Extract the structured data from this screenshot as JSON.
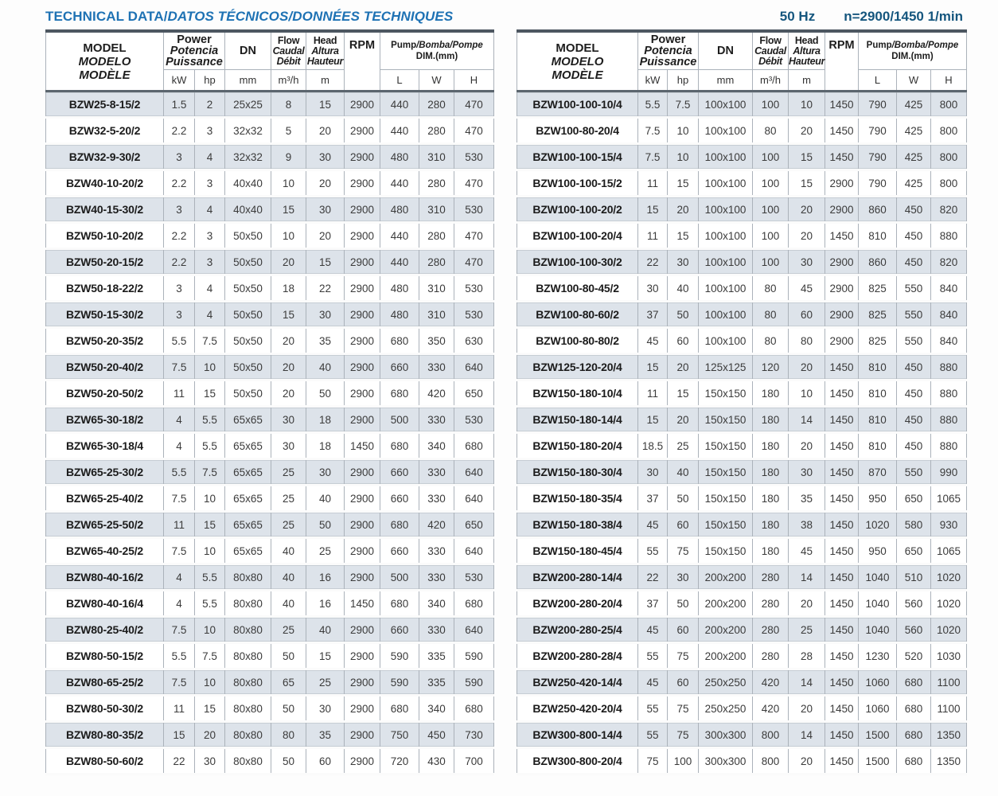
{
  "header": {
    "title_main": "TECHNICAL DATA/",
    "title_translations": "DATOS TÉCNICOS/DONNÉES TECHNIQUES",
    "frequency": "50 Hz",
    "speed": "n=2900/1450 1/min"
  },
  "colors": {
    "title_blue": "#1e72b4",
    "subtitle_blue": "#15567e",
    "row_stripe": "#dde3ea",
    "table_border_dark": "#4d5761"
  },
  "columns": {
    "model": [
      "MODEL",
      "MODELO",
      "MODÈLE"
    ],
    "power": [
      "Power",
      "Potencia",
      "Puissance"
    ],
    "dn": "DN",
    "flow": [
      "Flow",
      "Caudal",
      "Débit"
    ],
    "head": [
      "Head",
      "Altura",
      "Hauteur"
    ],
    "rpm": "RPM",
    "dim_pump": "Pump",
    "dim_rest": "/Bomba/Pompe",
    "dim_line2": "DIM.(mm)",
    "units": {
      "kw": "kW",
      "hp": "hp",
      "mm": "mm",
      "flow": "m³/h",
      "head": "m",
      "l": "L",
      "w": "W",
      "h": "H"
    }
  },
  "tables": {
    "left": {
      "rows": [
        [
          "BZW25-8-15/2",
          "1.5",
          "2",
          "25x25",
          "8",
          "15",
          "2900",
          "440",
          "280",
          "470"
        ],
        [
          "BZW32-5-20/2",
          "2.2",
          "3",
          "32x32",
          "5",
          "20",
          "2900",
          "440",
          "280",
          "470"
        ],
        [
          "BZW32-9-30/2",
          "3",
          "4",
          "32x32",
          "9",
          "30",
          "2900",
          "480",
          "310",
          "530"
        ],
        [
          "BZW40-10-20/2",
          "2.2",
          "3",
          "40x40",
          "10",
          "20",
          "2900",
          "440",
          "280",
          "470"
        ],
        [
          "BZW40-15-30/2",
          "3",
          "4",
          "40x40",
          "15",
          "30",
          "2900",
          "480",
          "310",
          "530"
        ],
        [
          "BZW50-10-20/2",
          "2.2",
          "3",
          "50x50",
          "10",
          "20",
          "2900",
          "440",
          "280",
          "470"
        ],
        [
          "BZW50-20-15/2",
          "2.2",
          "3",
          "50x50",
          "20",
          "15",
          "2900",
          "440",
          "280",
          "470"
        ],
        [
          "BZW50-18-22/2",
          "3",
          "4",
          "50x50",
          "18",
          "22",
          "2900",
          "480",
          "310",
          "530"
        ],
        [
          "BZW50-15-30/2",
          "3",
          "4",
          "50x50",
          "15",
          "30",
          "2900",
          "480",
          "310",
          "530"
        ],
        [
          "BZW50-20-35/2",
          "5.5",
          "7.5",
          "50x50",
          "20",
          "35",
          "2900",
          "680",
          "350",
          "630"
        ],
        [
          "BZW50-20-40/2",
          "7.5",
          "10",
          "50x50",
          "20",
          "40",
          "2900",
          "660",
          "330",
          "640"
        ],
        [
          "BZW50-20-50/2",
          "11",
          "15",
          "50x50",
          "20",
          "50",
          "2900",
          "680",
          "420",
          "650"
        ],
        [
          "BZW65-30-18/2",
          "4",
          "5.5",
          "65x65",
          "30",
          "18",
          "2900",
          "500",
          "330",
          "530"
        ],
        [
          "BZW65-30-18/4",
          "4",
          "5.5",
          "65x65",
          "30",
          "18",
          "1450",
          "680",
          "340",
          "680"
        ],
        [
          "BZW65-25-30/2",
          "5.5",
          "7.5",
          "65x65",
          "25",
          "30",
          "2900",
          "660",
          "330",
          "640"
        ],
        [
          "BZW65-25-40/2",
          "7.5",
          "10",
          "65x65",
          "25",
          "40",
          "2900",
          "660",
          "330",
          "640"
        ],
        [
          "BZW65-25-50/2",
          "11",
          "15",
          "65x65",
          "25",
          "50",
          "2900",
          "680",
          "420",
          "650"
        ],
        [
          "BZW65-40-25/2",
          "7.5",
          "10",
          "65x65",
          "40",
          "25",
          "2900",
          "660",
          "330",
          "640"
        ],
        [
          "BZW80-40-16/2",
          "4",
          "5.5",
          "80x80",
          "40",
          "16",
          "2900",
          "500",
          "330",
          "530"
        ],
        [
          "BZW80-40-16/4",
          "4",
          "5.5",
          "80x80",
          "40",
          "16",
          "1450",
          "680",
          "340",
          "680"
        ],
        [
          "BZW80-25-40/2",
          "7.5",
          "10",
          "80x80",
          "25",
          "40",
          "2900",
          "660",
          "330",
          "640"
        ],
        [
          "BZW80-50-15/2",
          "5.5",
          "7.5",
          "80x80",
          "50",
          "15",
          "2900",
          "590",
          "335",
          "590"
        ],
        [
          "BZW80-65-25/2",
          "7.5",
          "10",
          "80x80",
          "65",
          "25",
          "2900",
          "590",
          "335",
          "590"
        ],
        [
          "BZW80-50-30/2",
          "11",
          "15",
          "80x80",
          "50",
          "30",
          "2900",
          "680",
          "340",
          "680"
        ],
        [
          "BZW80-80-35/2",
          "15",
          "20",
          "80x80",
          "80",
          "35",
          "2900",
          "750",
          "450",
          "730"
        ],
        [
          "BZW80-50-60/2",
          "22",
          "30",
          "80x80",
          "50",
          "60",
          "2900",
          "720",
          "430",
          "700"
        ]
      ]
    },
    "right": {
      "rows": [
        [
          "BZW100-100-10/4",
          "5.5",
          "7.5",
          "100x100",
          "100",
          "10",
          "1450",
          "790",
          "425",
          "800"
        ],
        [
          "BZW100-80-20/4",
          "7.5",
          "10",
          "100x100",
          "80",
          "20",
          "1450",
          "790",
          "425",
          "800"
        ],
        [
          "BZW100-100-15/4",
          "7.5",
          "10",
          "100x100",
          "100",
          "15",
          "1450",
          "790",
          "425",
          "800"
        ],
        [
          "BZW100-100-15/2",
          "11",
          "15",
          "100x100",
          "100",
          "15",
          "2900",
          "790",
          "425",
          "800"
        ],
        [
          "BZW100-100-20/2",
          "15",
          "20",
          "100x100",
          "100",
          "20",
          "2900",
          "860",
          "450",
          "820"
        ],
        [
          "BZW100-100-20/4",
          "11",
          "15",
          "100x100",
          "100",
          "20",
          "1450",
          "810",
          "450",
          "880"
        ],
        [
          "BZW100-100-30/2",
          "22",
          "30",
          "100x100",
          "100",
          "30",
          "2900",
          "860",
          "450",
          "820"
        ],
        [
          "BZW100-80-45/2",
          "30",
          "40",
          "100x100",
          "80",
          "45",
          "2900",
          "825",
          "550",
          "840"
        ],
        [
          "BZW100-80-60/2",
          "37",
          "50",
          "100x100",
          "80",
          "60",
          "2900",
          "825",
          "550",
          "840"
        ],
        [
          "BZW100-80-80/2",
          "45",
          "60",
          "100x100",
          "80",
          "80",
          "2900",
          "825",
          "550",
          "840"
        ],
        [
          "BZW125-120-20/4",
          "15",
          "20",
          "125x125",
          "120",
          "20",
          "1450",
          "810",
          "450",
          "880"
        ],
        [
          "BZW150-180-10/4",
          "11",
          "15",
          "150x150",
          "180",
          "10",
          "1450",
          "810",
          "450",
          "880"
        ],
        [
          "BZW150-180-14/4",
          "15",
          "20",
          "150x150",
          "180",
          "14",
          "1450",
          "810",
          "450",
          "880"
        ],
        [
          "BZW150-180-20/4",
          "18.5",
          "25",
          "150x150",
          "180",
          "20",
          "1450",
          "810",
          "450",
          "880"
        ],
        [
          "BZW150-180-30/4",
          "30",
          "40",
          "150x150",
          "180",
          "30",
          "1450",
          "870",
          "550",
          "990"
        ],
        [
          "BZW150-180-35/4",
          "37",
          "50",
          "150x150",
          "180",
          "35",
          "1450",
          "950",
          "650",
          "1065"
        ],
        [
          "BZW150-180-38/4",
          "45",
          "60",
          "150x150",
          "180",
          "38",
          "1450",
          "1020",
          "580",
          "930"
        ],
        [
          "BZW150-180-45/4",
          "55",
          "75",
          "150x150",
          "180",
          "45",
          "1450",
          "950",
          "650",
          "1065"
        ],
        [
          "BZW200-280-14/4",
          "22",
          "30",
          "200x200",
          "280",
          "14",
          "1450",
          "1040",
          "510",
          "1020"
        ],
        [
          "BZW200-280-20/4",
          "37",
          "50",
          "200x200",
          "280",
          "20",
          "1450",
          "1040",
          "560",
          "1020"
        ],
        [
          "BZW200-280-25/4",
          "45",
          "60",
          "200x200",
          "280",
          "25",
          "1450",
          "1040",
          "560",
          "1020"
        ],
        [
          "BZW200-280-28/4",
          "55",
          "75",
          "200x200",
          "280",
          "28",
          "1450",
          "1230",
          "520",
          "1030"
        ],
        [
          "BZW250-420-14/4",
          "45",
          "60",
          "250x250",
          "420",
          "14",
          "1450",
          "1060",
          "680",
          "1100"
        ],
        [
          "BZW250-420-20/4",
          "55",
          "75",
          "250x250",
          "420",
          "20",
          "1450",
          "1060",
          "680",
          "1100"
        ],
        [
          "BZW300-800-14/4",
          "55",
          "75",
          "300x300",
          "800",
          "14",
          "1450",
          "1500",
          "680",
          "1350"
        ],
        [
          "BZW300-800-20/4",
          "75",
          "100",
          "300x300",
          "800",
          "20",
          "1450",
          "1500",
          "680",
          "1350"
        ]
      ]
    }
  }
}
